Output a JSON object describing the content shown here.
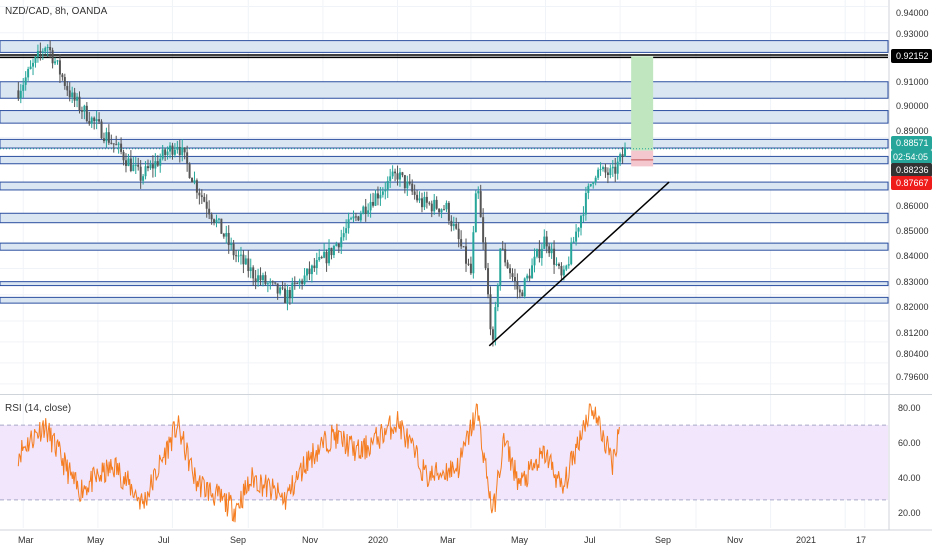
{
  "symbol": {
    "title": "NZD/CAD, 8h, OANDA"
  },
  "rsi": {
    "title": "RSI (14, close)",
    "axis_ticks": [
      "80.00",
      "60.00",
      "40.00",
      "20.00"
    ]
  },
  "price_axis": {
    "ticks": [
      "0.94000",
      "0.93000",
      "0.91000",
      "0.90000",
      "0.89000",
      "0.86000",
      "0.85000",
      "0.84000",
      "0.83000",
      "0.82000",
      "0.81200",
      "0.80400",
      "0.79600"
    ]
  },
  "time_axis": {
    "labels": [
      "Mar",
      "May",
      "Jul",
      "Sep",
      "Nov",
      "2020",
      "Mar",
      "May",
      "Jul",
      "Sep",
      "Nov",
      "2021",
      "17"
    ]
  },
  "badges": [
    {
      "text": "0.92152",
      "bg": "#000000",
      "fg": "#ffffff"
    },
    {
      "text": "0.88571",
      "bg": "#26a69a",
      "fg": "#ffffff"
    },
    {
      "text": "02:54:05",
      "bg": "#26a69a",
      "fg": "#ffffff"
    },
    {
      "text": "0.88236",
      "bg": "#333333",
      "fg": "#ffffff"
    },
    {
      "text": "0.87667",
      "bg": "#ef1c1c",
      "fg": "#ffffff"
    }
  ],
  "colors": {
    "up": "#26a69a",
    "down": "#555555",
    "zone_fill": "#dbe6f3",
    "zone_border": "#2b4fa0",
    "rsi_line": "#f57c1f",
    "rsi_band": "#f1e6fb",
    "target": "#bfe6bf",
    "stop": "#f4c7cf"
  },
  "chart_data": {
    "type": "candlestick",
    "title": "NZD/CAD, 8h, OANDA",
    "price_range": [
      0.7925,
      0.9425
    ],
    "horizontal_zones": [
      [
        0.9225,
        0.927
      ],
      [
        0.905,
        0.9113
      ],
      [
        0.8955,
        0.9003
      ],
      [
        0.886,
        0.8893
      ],
      [
        0.88,
        0.8828
      ],
      [
        0.87,
        0.873
      ],
      [
        0.8575,
        0.8611
      ],
      [
        0.847,
        0.8497
      ],
      [
        0.8335,
        0.835
      ],
      [
        0.8268,
        0.829
      ]
    ],
    "key_levels": [
      0.92152,
      0.9206
    ],
    "trendline": {
      "from": [
        "2020-03-16",
        0.8105
      ],
      "to": [
        "2020-08-10",
        0.873
      ]
    },
    "trade_box": {
      "target": [
        0.921,
        0.885
      ],
      "entry": 0.885,
      "stop": 0.879
    },
    "last_price": 0.88571,
    "countdown": "02:54:05",
    "path_keypoints": [
      [
        "2019-02-25",
        0.908
      ],
      [
        "2019-03-20",
        0.926
      ],
      [
        "2019-04-10",
        0.905
      ],
      [
        "2019-05-15",
        0.887
      ],
      [
        "2019-06-05",
        0.875
      ],
      [
        "2019-07-05",
        0.888
      ],
      [
        "2019-07-20",
        0.872
      ],
      [
        "2019-08-20",
        0.846
      ],
      [
        "2019-09-05",
        0.838
      ],
      [
        "2019-10-01",
        0.829
      ],
      [
        "2019-10-20",
        0.838
      ],
      [
        "2019-11-05",
        0.845
      ],
      [
        "2019-11-25",
        0.858
      ],
      [
        "2019-12-10",
        0.866
      ],
      [
        "2020-01-01",
        0.876
      ],
      [
        "2020-01-20",
        0.865
      ],
      [
        "2020-02-10",
        0.863
      ],
      [
        "2020-03-01",
        0.838
      ],
      [
        "2020-03-06",
        0.873
      ],
      [
        "2020-03-19",
        0.81
      ],
      [
        "2020-03-25",
        0.848
      ],
      [
        "2020-04-10",
        0.83
      ],
      [
        "2020-05-01",
        0.852
      ],
      [
        "2020-05-15",
        0.835
      ],
      [
        "2020-05-29",
        0.859
      ],
      [
        "2020-06-10",
        0.877
      ],
      [
        "2020-06-25",
        0.876
      ],
      [
        "2020-07-06",
        0.8857
      ]
    ],
    "rsi": {
      "range": [
        15,
        85
      ],
      "bands": [
        70,
        30
      ],
      "keypoints": [
        [
          "2019-02-25",
          55
        ],
        [
          "2019-03-18",
          70
        ],
        [
          "2019-04-15",
          35
        ],
        [
          "2019-05-15",
          48
        ],
        [
          "2019-06-07",
          28
        ],
        [
          "2019-07-05",
          70
        ],
        [
          "2019-07-20",
          40
        ],
        [
          "2019-08-21",
          25
        ],
        [
          "2019-09-05",
          42
        ],
        [
          "2019-10-01",
          30
        ],
        [
          "2019-10-20",
          52
        ],
        [
          "2019-11-10",
          65
        ],
        [
          "2019-12-01",
          55
        ],
        [
          "2020-01-01",
          72
        ],
        [
          "2020-01-25",
          42
        ],
        [
          "2020-02-20",
          48
        ],
        [
          "2020-03-06",
          78
        ],
        [
          "2020-03-19",
          22
        ],
        [
          "2020-03-28",
          62
        ],
        [
          "2020-04-10",
          38
        ],
        [
          "2020-05-01",
          55
        ],
        [
          "2020-05-15",
          35
        ],
        [
          "2020-06-01",
          70
        ],
        [
          "2020-06-08",
          80
        ],
        [
          "2020-06-25",
          50
        ],
        [
          "2020-07-01",
          72
        ]
      ]
    }
  }
}
